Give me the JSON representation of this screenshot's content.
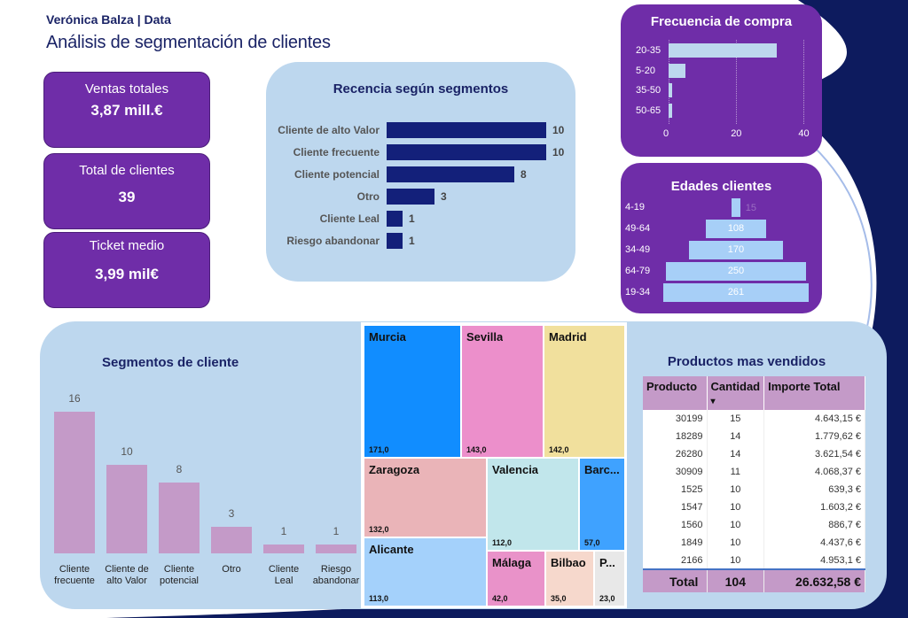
{
  "header": {
    "author": "Verónica Balza | Data",
    "title": "Análisis de segmentación de clientes"
  },
  "kpis": {
    "ventas": {
      "label": "Ventas totales",
      "value": "3,87 mill.€"
    },
    "clientes": {
      "label": "Total de clientes",
      "value": "39"
    },
    "ticket": {
      "label": "Ticket medio",
      "value": "3,99 mil€"
    }
  },
  "recencia": {
    "title": "Recencia según segmentos",
    "chart_data": {
      "type": "bar",
      "orientation": "horizontal",
      "categories": [
        "Cliente de alto Valor",
        "Cliente frecuente",
        "Cliente potencial",
        "Otro",
        "Cliente Leal",
        "Riesgo abandonar"
      ],
      "values": [
        10,
        10,
        8,
        3,
        1,
        1
      ],
      "labels": [
        "10",
        "10",
        "8",
        "3",
        "1",
        "1"
      ],
      "color": "#13207a"
    }
  },
  "frecuencia": {
    "title": "Frecuencia de compra",
    "chart_data": {
      "type": "bar",
      "orientation": "horizontal",
      "categories": [
        "20-35",
        "5-20",
        "35-50",
        "50-65"
      ],
      "values": [
        32,
        5,
        1,
        1
      ],
      "xticks": [
        "0",
        "20",
        "40"
      ],
      "xlim": [
        0,
        42
      ],
      "color": "#bdd7ee"
    }
  },
  "edades": {
    "title": "Edades clientes",
    "chart_data": {
      "type": "bar",
      "orientation": "horizontal-centered",
      "categories": [
        "4-19",
        "49-64",
        "34-49",
        "64-79",
        "19-34"
      ],
      "values": [
        15,
        108,
        170,
        250,
        261
      ],
      "labels": [
        "15",
        "108",
        "170",
        "250",
        "261"
      ],
      "color": "#a7cff7"
    }
  },
  "segmentos": {
    "title": "Segmentos de cliente",
    "chart_data": {
      "type": "bar",
      "categories": [
        "Cliente frecuente",
        "Cliente de alto Valor",
        "Cliente potencial",
        "Otro",
        "Cliente Leal",
        "Riesgo abandonar"
      ],
      "category_lines": [
        [
          "Cliente",
          "frecuente"
        ],
        [
          "Cliente de",
          "alto Valor"
        ],
        [
          "Cliente",
          "potencial"
        ],
        [
          "Otro",
          ""
        ],
        [
          "Cliente",
          "Leal"
        ],
        [
          "Riesgo",
          "abandonar"
        ]
      ],
      "values": [
        16,
        10,
        8,
        3,
        1,
        1
      ],
      "labels": [
        "16",
        "10",
        "8",
        "3",
        "1",
        "1"
      ],
      "color": "#c49ac8"
    }
  },
  "treemap": {
    "chart_data": {
      "type": "treemap",
      "items": [
        {
          "name": "Murcia",
          "value": 171.0,
          "label": "171,0",
          "color": "#118dff"
        },
        {
          "name": "Sevilla",
          "value": 143.0,
          "label": "143,0",
          "color": "#ec8fcb"
        },
        {
          "name": "Madrid",
          "value": 142.0,
          "label": "142,0",
          "color": "#f1e09d"
        },
        {
          "name": "Zaragoza",
          "value": 132.0,
          "label": "132,0",
          "color": "#eab4b8"
        },
        {
          "name": "Valencia",
          "value": 112.0,
          "label": "112,0",
          "color": "#c1e6eb"
        },
        {
          "name": "Barc...",
          "value": 57.0,
          "label": "57,0",
          "color": "#3fa2ff"
        },
        {
          "name": "Alicante",
          "value": 113.0,
          "label": "113,0",
          "color": "#a4d1fb"
        },
        {
          "name": "Málaga",
          "value": 42.0,
          "label": "42,0",
          "color": "#e992c9"
        },
        {
          "name": "Bilbao",
          "value": 35.0,
          "label": "35,0",
          "color": "#f6d8cc"
        },
        {
          "name": "P...",
          "value": 23.0,
          "label": "23,0",
          "color": "#e8e8e8"
        }
      ]
    }
  },
  "productos": {
    "title": "Productos mas vendidos",
    "columns": [
      "Producto",
      "Cantidad",
      "Importe Total"
    ],
    "sort_indicator": "▾",
    "rows": [
      [
        "30199",
        "15",
        "4.643,15 €"
      ],
      [
        "18289",
        "14",
        "1.779,62 €"
      ],
      [
        "26280",
        "14",
        "3.621,54 €"
      ],
      [
        "30909",
        "11",
        "4.068,37 €"
      ],
      [
        "1525",
        "10",
        "639,3 €"
      ],
      [
        "1547",
        "10",
        "1.603,2 €"
      ],
      [
        "1560",
        "10",
        "886,7 €"
      ],
      [
        "1849",
        "10",
        "4.437,6 €"
      ],
      [
        "2166",
        "10",
        "4.953,1 €"
      ]
    ],
    "total": [
      "Total",
      "104",
      "26.632,58 €"
    ]
  },
  "colors": {
    "kpi_purple": "#6f2da8",
    "panel_light_blue": "#bdd7ee",
    "navy": "#13207a",
    "lilac": "#c49ac8"
  }
}
